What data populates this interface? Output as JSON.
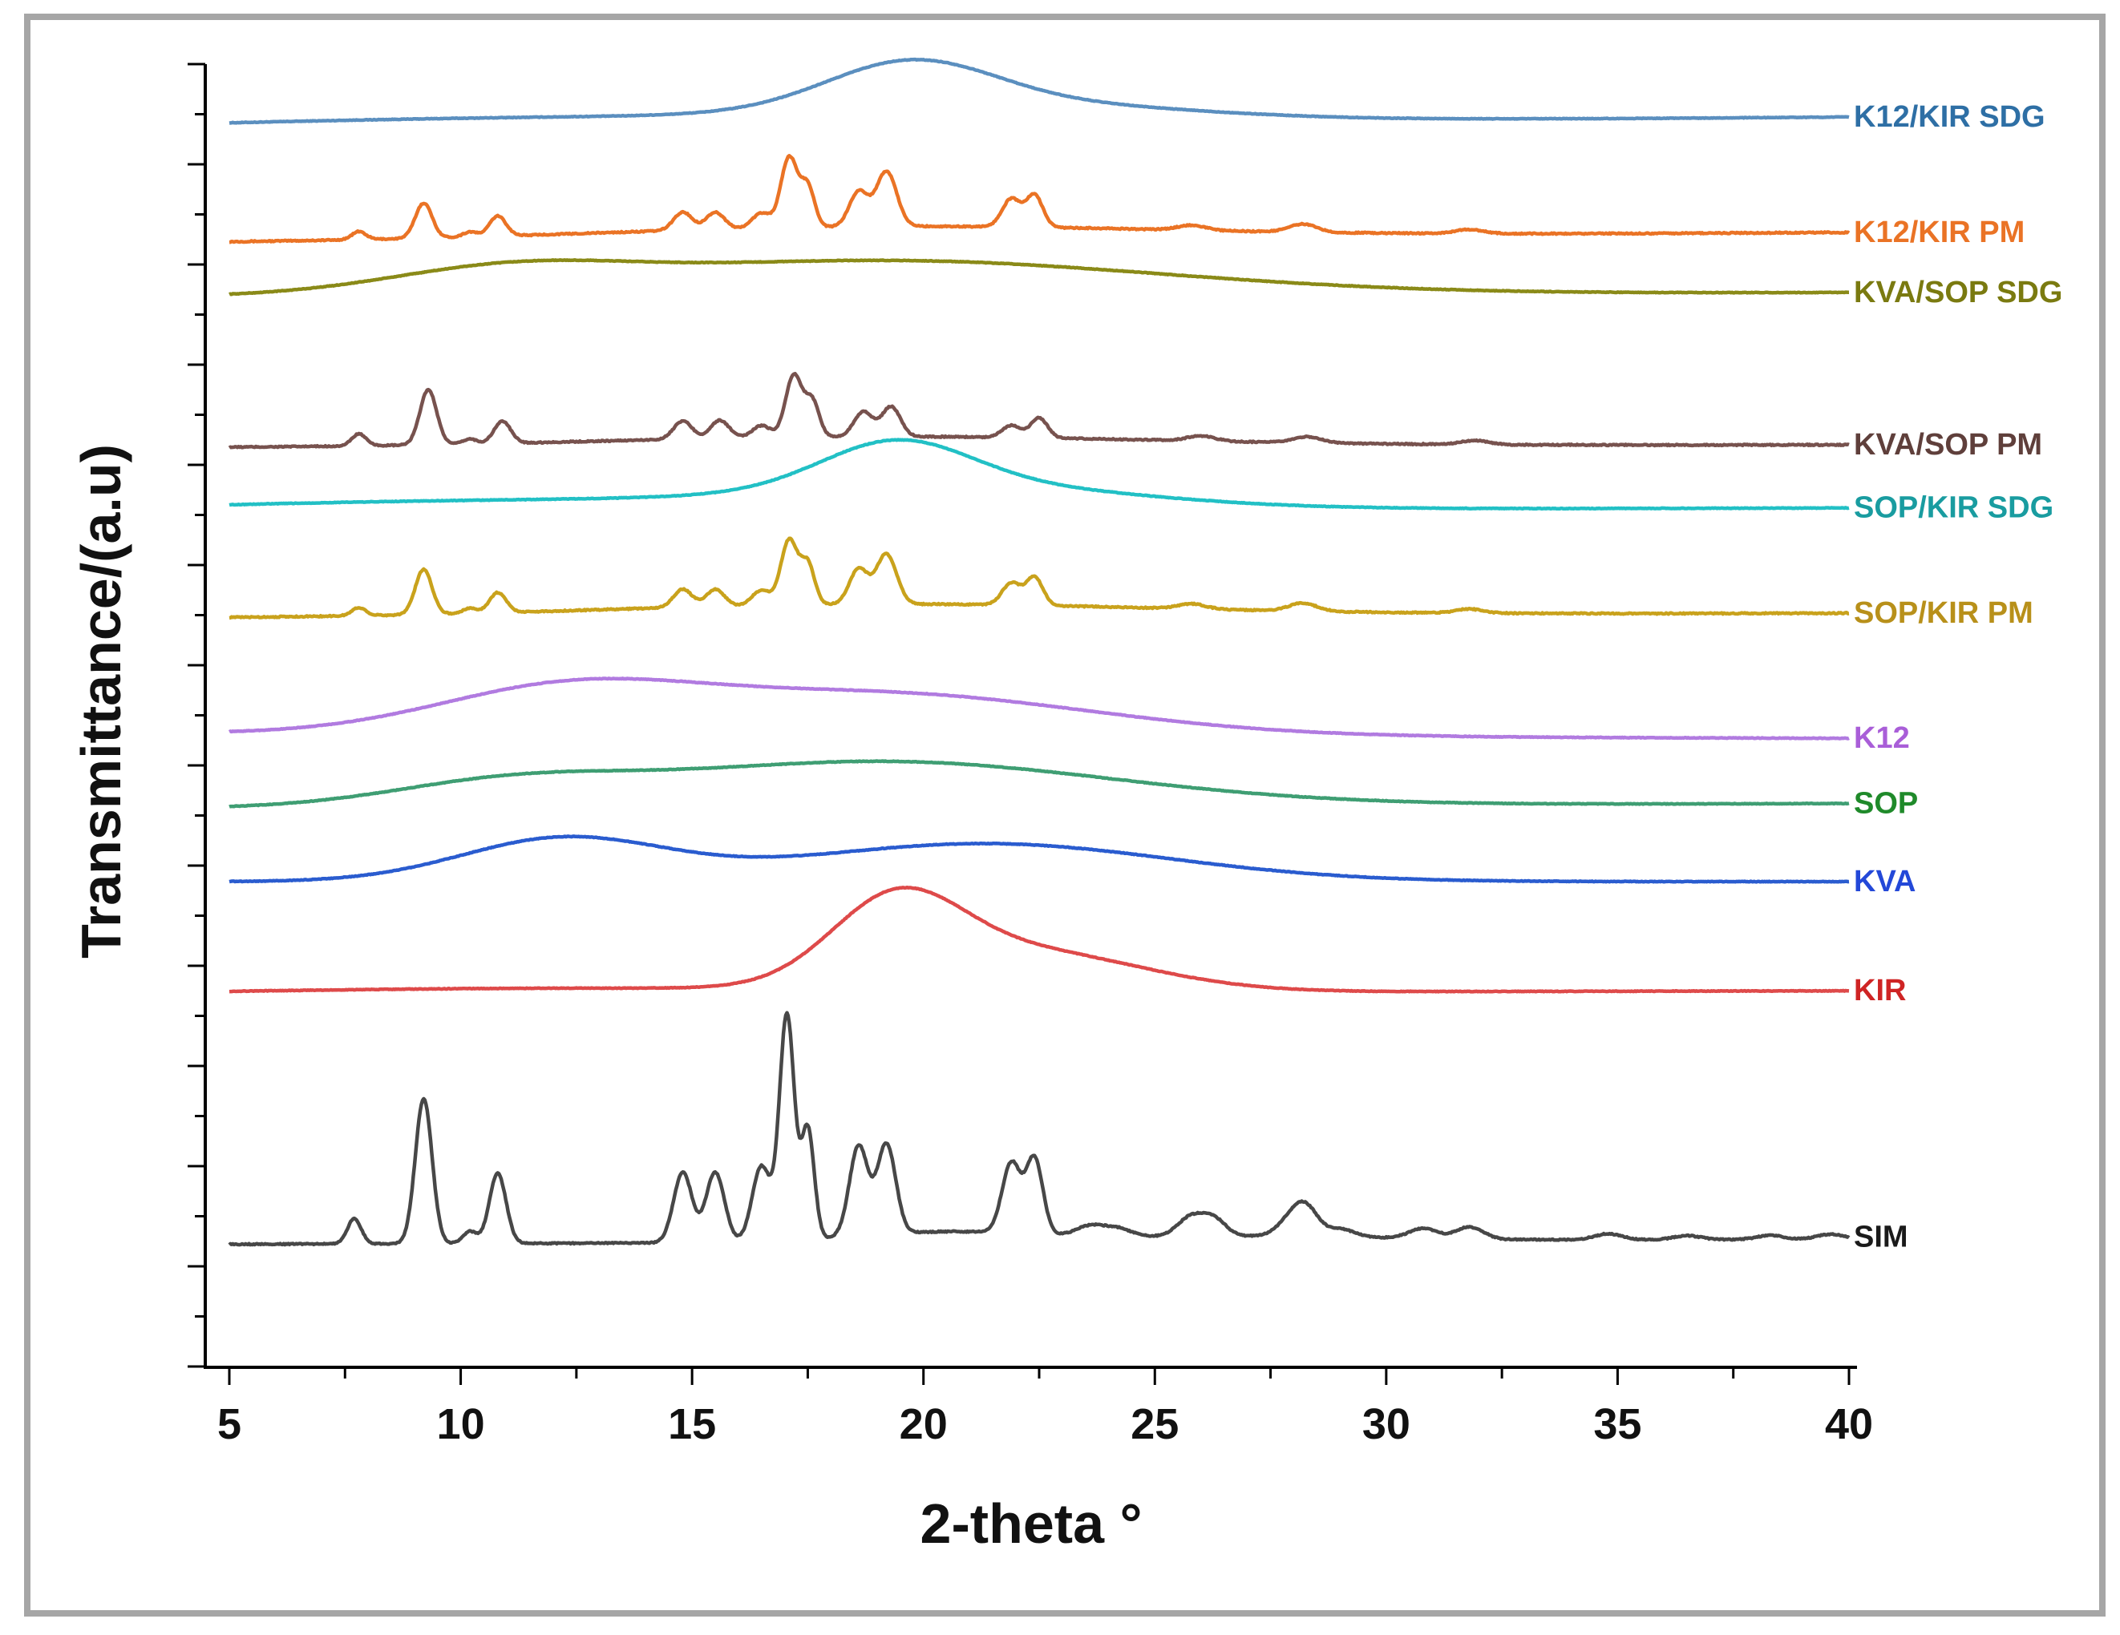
{
  "chart_data": {
    "type": "line",
    "title": "",
    "xlabel": "2-theta °",
    "ylabel": "Transmittance/(a.u)",
    "xlim": [
      5,
      40
    ],
    "x_ticks": [
      "5",
      "10",
      "15",
      "20",
      "25",
      "30",
      "35",
      "40"
    ],
    "y_tick_labels_shown": false,
    "grid": false,
    "legend": "inline labels at right end of each trace",
    "note": "Stacked XRD patterns; baseline = vertical offset of each trace in arbitrary units, peaks = [2-theta, relative intensity, width].",
    "series": [
      {
        "name": "K12/KIR SDG",
        "color": "#5b8fbf",
        "label_color": "#2e6fa5",
        "baseline_start": 11.2,
        "baseline_end": 11.35,
        "halos": [
          [
            19.7,
            0.45,
            1.8
          ],
          [
            22,
            0.15,
            3.5
          ],
          [
            12,
            0.12,
            10
          ]
        ],
        "peaks": []
      },
      {
        "name": "K12/KIR PM",
        "color": "#ea7325",
        "label_color": "#ea7325",
        "baseline_start": 10.1,
        "baseline_end": 10.2,
        "halos": [
          [
            19,
            0.12,
            6
          ]
        ],
        "peaks": [
          [
            7.8,
            0.08,
            0.15
          ],
          [
            9.2,
            0.35,
            0.18
          ],
          [
            10.2,
            0.05,
            0.15
          ],
          [
            10.8,
            0.2,
            0.18
          ],
          [
            14.8,
            0.18,
            0.2
          ],
          [
            15.5,
            0.17,
            0.2
          ],
          [
            16.5,
            0.15,
            0.2
          ],
          [
            17.1,
            0.7,
            0.18
          ],
          [
            17.5,
            0.4,
            0.15
          ],
          [
            18.6,
            0.35,
            0.2
          ],
          [
            19.2,
            0.55,
            0.22
          ],
          [
            21.9,
            0.28,
            0.2
          ],
          [
            22.4,
            0.32,
            0.18
          ],
          [
            25.8,
            0.05,
            0.3
          ],
          [
            28.2,
            0.08,
            0.3
          ],
          [
            31.8,
            0.04,
            0.3
          ]
        ]
      },
      {
        "name": "KVA/SOP SDG",
        "color": "#8a8a18",
        "label_color": "#7a7a10",
        "baseline_start": 9.55,
        "baseline_end": 9.6,
        "halos": [
          [
            11,
            0.2,
            2.5
          ],
          [
            19,
            0.35,
            6
          ]
        ],
        "peaks": []
      },
      {
        "name": "KVA/SOP PM",
        "color": "#77524e",
        "label_color": "#5f3f3b",
        "baseline_start": 8.05,
        "baseline_end": 8.08,
        "halos": [
          [
            19,
            0.1,
            6
          ]
        ],
        "peaks": [
          [
            7.8,
            0.12,
            0.15
          ],
          [
            9.3,
            0.55,
            0.18
          ],
          [
            10.2,
            0.05,
            0.15
          ],
          [
            10.9,
            0.22,
            0.18
          ],
          [
            14.8,
            0.18,
            0.2
          ],
          [
            15.6,
            0.18,
            0.2
          ],
          [
            16.5,
            0.12,
            0.2
          ],
          [
            17.2,
            0.62,
            0.18
          ],
          [
            17.6,
            0.35,
            0.15
          ],
          [
            18.7,
            0.25,
            0.2
          ],
          [
            19.3,
            0.3,
            0.2
          ],
          [
            21.9,
            0.12,
            0.2
          ],
          [
            22.5,
            0.2,
            0.18
          ],
          [
            26,
            0.05,
            0.3
          ],
          [
            28.3,
            0.06,
            0.3
          ],
          [
            31.9,
            0.04,
            0.3
          ]
        ]
      },
      {
        "name": "SOP/KIR SDG",
        "color": "#22c0c5",
        "label_color": "#199ca0",
        "baseline_start": 7.4,
        "baseline_end": 7.45,
        "halos": [
          [
            19.4,
            0.45,
            1.6
          ],
          [
            21,
            0.2,
            3.5
          ],
          [
            12,
            0.12,
            8
          ]
        ],
        "peaks": []
      },
      {
        "name": "SOP/KIR PM",
        "color": "#c9a21c",
        "label_color": "#b8901a",
        "baseline_start": 6.35,
        "baseline_end": 6.4,
        "halos": [
          [
            19,
            0.12,
            6
          ]
        ],
        "peaks": [
          [
            7.8,
            0.08,
            0.15
          ],
          [
            9.2,
            0.45,
            0.18
          ],
          [
            10.2,
            0.05,
            0.15
          ],
          [
            10.8,
            0.2,
            0.18
          ],
          [
            14.8,
            0.18,
            0.2
          ],
          [
            15.5,
            0.17,
            0.2
          ],
          [
            16.5,
            0.15,
            0.2
          ],
          [
            17.1,
            0.65,
            0.18
          ],
          [
            17.5,
            0.4,
            0.15
          ],
          [
            18.6,
            0.35,
            0.2
          ],
          [
            19.2,
            0.5,
            0.22
          ],
          [
            21.9,
            0.22,
            0.2
          ],
          [
            22.4,
            0.28,
            0.18
          ],
          [
            25.8,
            0.05,
            0.3
          ],
          [
            28.2,
            0.08,
            0.3
          ],
          [
            31.8,
            0.04,
            0.3
          ]
        ]
      },
      {
        "name": "K12",
        "color": "#b17be0",
        "label_color": "#a95ed8",
        "baseline_start": 5.2,
        "baseline_end": 5.15,
        "halos": [
          [
            12.2,
            0.4,
            2.8
          ],
          [
            19,
            0.42,
            4.5
          ]
        ],
        "peaks": []
      },
      {
        "name": "SOP",
        "color": "#3f9e73",
        "label_color": "#1f8a2a",
        "baseline_start": 4.45,
        "baseline_end": 4.5,
        "halos": [
          [
            11,
            0.2,
            2.5
          ],
          [
            19,
            0.45,
            5
          ]
        ],
        "peaks": []
      },
      {
        "name": "KVA",
        "color": "#2a5ccf",
        "label_color": "#2348d8",
        "baseline_start": 3.72,
        "baseline_end": 3.72,
        "halos": [
          [
            12.2,
            0.42,
            2.2
          ],
          [
            21.3,
            0.38,
            4
          ]
        ],
        "peaks": []
      },
      {
        "name": "KIR",
        "color": "#de4a4a",
        "label_color": "#cf2424",
        "baseline_start": 2.6,
        "baseline_end": 2.63,
        "halos": [
          [
            19.4,
            0.8,
            1.4
          ],
          [
            22.2,
            0.4,
            2.5
          ],
          [
            12,
            0.05,
            6
          ]
        ],
        "peaks": []
      },
      {
        "name": "SIM",
        "color": "#474747",
        "label_color": "#1a1a1a",
        "baseline_start": 0.1,
        "baseline_end": 0.15,
        "halos": [
          [
            20.5,
            0.1,
            2
          ],
          [
            27,
            0.05,
            3
          ]
        ],
        "peaks": [
          [
            7.7,
            0.25,
            0.15
          ],
          [
            9.2,
            1.45,
            0.18
          ],
          [
            10.2,
            0.12,
            0.15
          ],
          [
            10.8,
            0.7,
            0.18
          ],
          [
            14.8,
            0.7,
            0.2
          ],
          [
            15.5,
            0.7,
            0.2
          ],
          [
            16.5,
            0.75,
            0.2
          ],
          [
            17.05,
            2.25,
            0.16
          ],
          [
            17.5,
            1.1,
            0.14
          ],
          [
            18.6,
            0.9,
            0.2
          ],
          [
            19.2,
            0.9,
            0.2
          ],
          [
            21.9,
            0.7,
            0.2
          ],
          [
            22.4,
            0.75,
            0.18
          ],
          [
            23.6,
            0.1,
            0.3
          ],
          [
            24.2,
            0.08,
            0.3
          ],
          [
            25.8,
            0.2,
            0.3
          ],
          [
            26.3,
            0.15,
            0.25
          ],
          [
            28,
            0.2,
            0.3
          ],
          [
            28.3,
            0.2,
            0.25
          ],
          [
            29,
            0.08,
            0.3
          ],
          [
            30.8,
            0.1,
            0.3
          ],
          [
            31.8,
            0.12,
            0.3
          ],
          [
            34.8,
            0.06,
            0.3
          ],
          [
            36.5,
            0.04,
            0.3
          ],
          [
            38.3,
            0.04,
            0.3
          ],
          [
            39.6,
            0.05,
            0.3
          ]
        ]
      }
    ]
  }
}
